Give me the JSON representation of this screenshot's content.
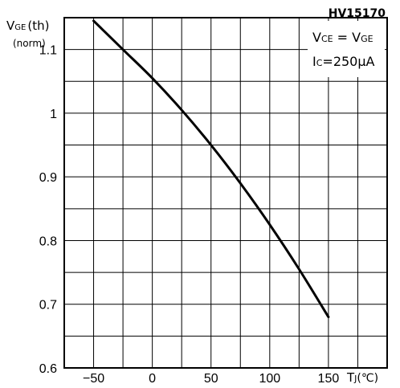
{
  "chart_data": {
    "type": "line",
    "figure_code": "HV15170",
    "ylabel_main": "V",
    "ylabel_sub": "GE",
    "ylabel_tail": "(th)",
    "ylabel_unit": "(norm)",
    "xlabel_main": "T",
    "xlabel_sub": "J",
    "xlabel_unit": "(℃)",
    "conditions": [
      {
        "main": "V",
        "sub": "CE",
        "mid": " = V",
        "sub2": "GE"
      },
      {
        "main": "I",
        "sub": "C",
        "mid": "=250μA",
        "sub2": ""
      }
    ],
    "xlim": [
      -75,
      200
    ],
    "ylim": [
      0.6,
      1.15
    ],
    "x_ticks": [
      -50,
      0,
      50,
      100,
      150
    ],
    "x_tick_labels": [
      "−50",
      "0",
      "50",
      "100",
      "150"
    ],
    "y_ticks": [
      0.6,
      0.7,
      0.8,
      0.9,
      1.0,
      1.1
    ],
    "y_tick_labels": [
      "0.6",
      "0.7",
      "0.8",
      "0.9",
      "1",
      "1.1"
    ],
    "grid": true,
    "series": [
      {
        "x": [
          -50,
          -25,
          0,
          25,
          50,
          75,
          100,
          125,
          150
        ],
        "y": [
          1.145,
          1.1,
          1.055,
          1.005,
          0.95,
          0.89,
          0.825,
          0.755,
          0.68
        ]
      }
    ]
  }
}
